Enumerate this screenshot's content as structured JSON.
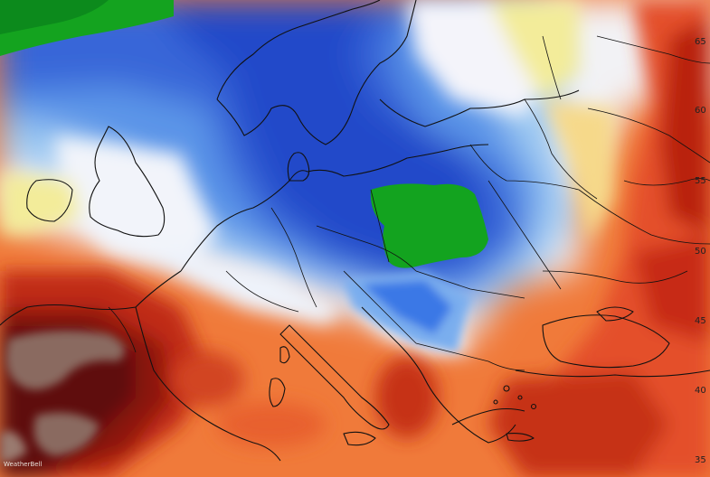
{
  "map": {
    "latitude_labels": [
      "65",
      "60",
      "55",
      "50",
      "45",
      "40",
      "35"
    ],
    "watermark": "WeatherBell",
    "colors": {
      "deep_blue": "#1f3fc4",
      "mid_blue": "#3a78e6",
      "light_blue": "#8ec4f4",
      "pale_blue": "#eef3fb",
      "pale_yellow": "#f3ec9a",
      "orange": "#f79a4a",
      "red_orange": "#e8502a",
      "dark_red": "#a8190e",
      "maroon": "#5a0f0c",
      "brown": "#8a6a60",
      "green": "#13a31f",
      "dark_green": "#0b8a1a"
    }
  }
}
